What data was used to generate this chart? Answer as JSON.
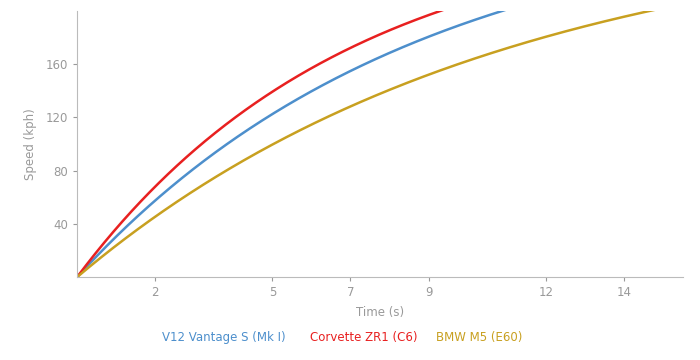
{
  "xlabel": "Time (s)",
  "ylabel": "Speed (kph)",
  "xlim": [
    0,
    15.5
  ],
  "ylim": [
    0,
    200
  ],
  "xticks": [
    2,
    5,
    7,
    9,
    12,
    14
  ],
  "yticks": [
    40,
    80,
    120,
    160
  ],
  "series": [
    {
      "label": "V12 Vantage S (Mk I)",
      "color": "#4d8fcc",
      "a": 28.0,
      "b": 0.62
    },
    {
      "label": "Corvette ZR1 (C6)",
      "color": "#e82020",
      "a": 32.5,
      "b": 0.6
    },
    {
      "label": "BMW M5 (E60)",
      "color": "#c8a020",
      "a": 24.5,
      "b": 0.63
    }
  ],
  "background_color": "#ffffff",
  "axis_color": "#bbbbbb",
  "tick_color": "#999999",
  "label_color": "#999999",
  "line_width": 1.8
}
